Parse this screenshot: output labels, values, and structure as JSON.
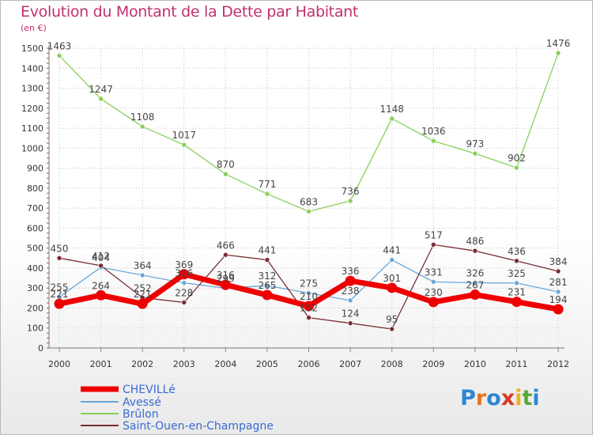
{
  "title": "Evolution du Montant de la Dette par Habitant",
  "unit": "(en €)",
  "brand": {
    "letters": [
      "P",
      "r",
      "o",
      "x",
      "i",
      "t",
      "i"
    ],
    "colors": [
      "#2e86d1",
      "#e8741e",
      "#2e86d1",
      "#d63a2a",
      "#e8b51e",
      "#5aa83a",
      "#2e86d1"
    ]
  },
  "chart_data": {
    "type": "line",
    "x": [
      "2000",
      "2001",
      "2002",
      "2003",
      "2004",
      "2005",
      "2006",
      "2007",
      "2008",
      "2009",
      "2010",
      "2011",
      "2012"
    ],
    "ylim": [
      0,
      1500
    ],
    "yticks": [
      "0",
      "100",
      "200",
      "300",
      "400",
      "500",
      "600",
      "700",
      "800",
      "900",
      "1000",
      "1100",
      "1200",
      "1300",
      "1400",
      "1500"
    ],
    "grid": true,
    "legend_position": "bottom-left",
    "series": [
      {
        "name": "CHEVILLé",
        "color": "#ee0000",
        "values": [
          221,
          264,
          221,
          369,
          316,
          265,
          210,
          336,
          301,
          230,
          267,
          231,
          194
        ],
        "labels": [
          "221",
          "264",
          "221",
          "369",
          "316",
          "265",
          "210",
          "336",
          "301",
          "230",
          "267",
          "231",
          "194"
        ]
      },
      {
        "name": "Avessé",
        "color": "#6aa7d8",
        "values": [
          255,
          404,
          364,
          326,
          299,
          312,
          275,
          238,
          441,
          331,
          326,
          325,
          281
        ],
        "labels": [
          "255",
          "404",
          "364",
          "326",
          "299",
          "312",
          "275",
          "238",
          "441",
          "331",
          "326",
          "325",
          "281"
        ]
      },
      {
        "name": "Brûlon",
        "color": "#88d05a",
        "values": [
          1463,
          1247,
          1108,
          1017,
          870,
          771,
          683,
          736,
          1148,
          1036,
          973,
          902,
          1476
        ],
        "labels": [
          "1463",
          "1247",
          "1108",
          "1017",
          "870",
          "771",
          "683",
          "736",
          "1148",
          "1036",
          "973",
          "902",
          "1476"
        ]
      },
      {
        "name": "Saint-Ouen-en-Champagne",
        "color": "#7a2c34",
        "values": [
          450,
          412,
          252,
          228,
          466,
          441,
          152,
          124,
          95,
          517,
          486,
          436,
          384
        ],
        "labels": [
          "450",
          "412",
          "252",
          "228",
          "466",
          "441",
          "152",
          "124",
          "95",
          "517",
          "486",
          "436",
          "384"
        ]
      }
    ]
  }
}
